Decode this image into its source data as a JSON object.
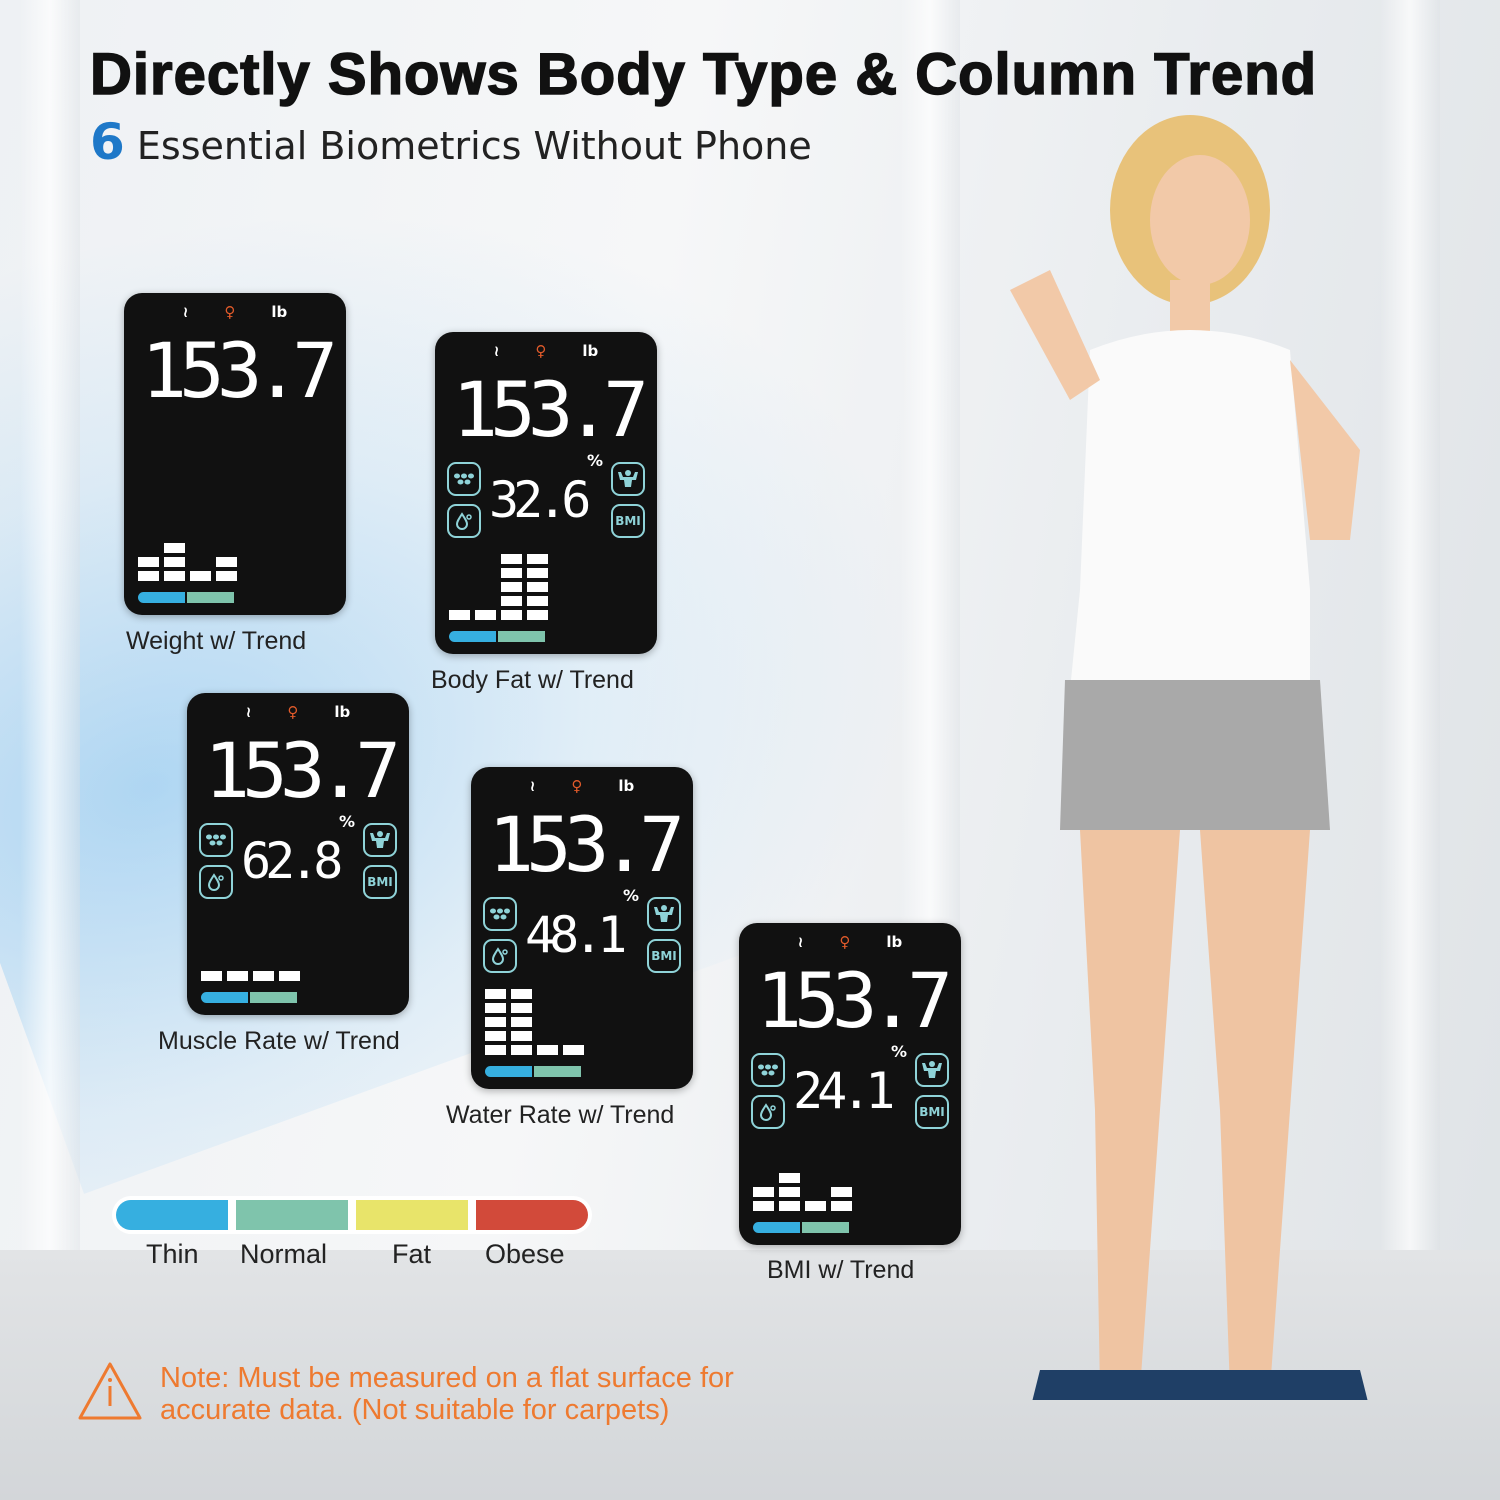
{
  "header": {
    "title": "Directly Shows Body Type & Column Trend",
    "sub_number": "6",
    "subtitle": "Essential Biometrics Without Phone"
  },
  "colors": {
    "thin": "#36afe0",
    "normal": "#7fc4ac",
    "fat": "#e8e46a",
    "obese": "#d24a3a",
    "accent": "#1e78c8",
    "note": "#ee7a30"
  },
  "panels": [
    {
      "label": "Weight w/ Trend",
      "unit": "lb",
      "value": "153.7",
      "secondary": null,
      "trend_columns": [
        2,
        3,
        1,
        2
      ]
    },
    {
      "label": "Body Fat w/ Trend",
      "unit": "lb",
      "value": "153.7",
      "secondary": "32.6",
      "secondary_unit": "%",
      "trend_columns": [
        1,
        1,
        5,
        5
      ]
    },
    {
      "label": "Muscle Rate w/ Trend",
      "unit": "lb",
      "value": "153.7",
      "secondary": "62.8",
      "secondary_unit": "%",
      "trend_columns": [
        1,
        1,
        1,
        1
      ]
    },
    {
      "label": "Water Rate w/ Trend",
      "unit": "lb",
      "value": "153.7",
      "secondary": "48.1",
      "secondary_unit": "%",
      "trend_columns": [
        5,
        5,
        1,
        1
      ]
    },
    {
      "label": "BMI w/ Trend",
      "unit": "lb",
      "value": "153.7",
      "secondary": "24.1",
      "secondary_unit": "%",
      "trend_columns": [
        2,
        3,
        1,
        2
      ]
    }
  ],
  "panel_icons": {
    "bmi_label": "BMI"
  },
  "legend": {
    "items": [
      "Thin",
      "Normal",
      "Fat",
      "Obese"
    ]
  },
  "note": {
    "line1": "Note: Must be measured on a flat surface for",
    "line2": "accurate data. (Not suitable for carpets)"
  }
}
